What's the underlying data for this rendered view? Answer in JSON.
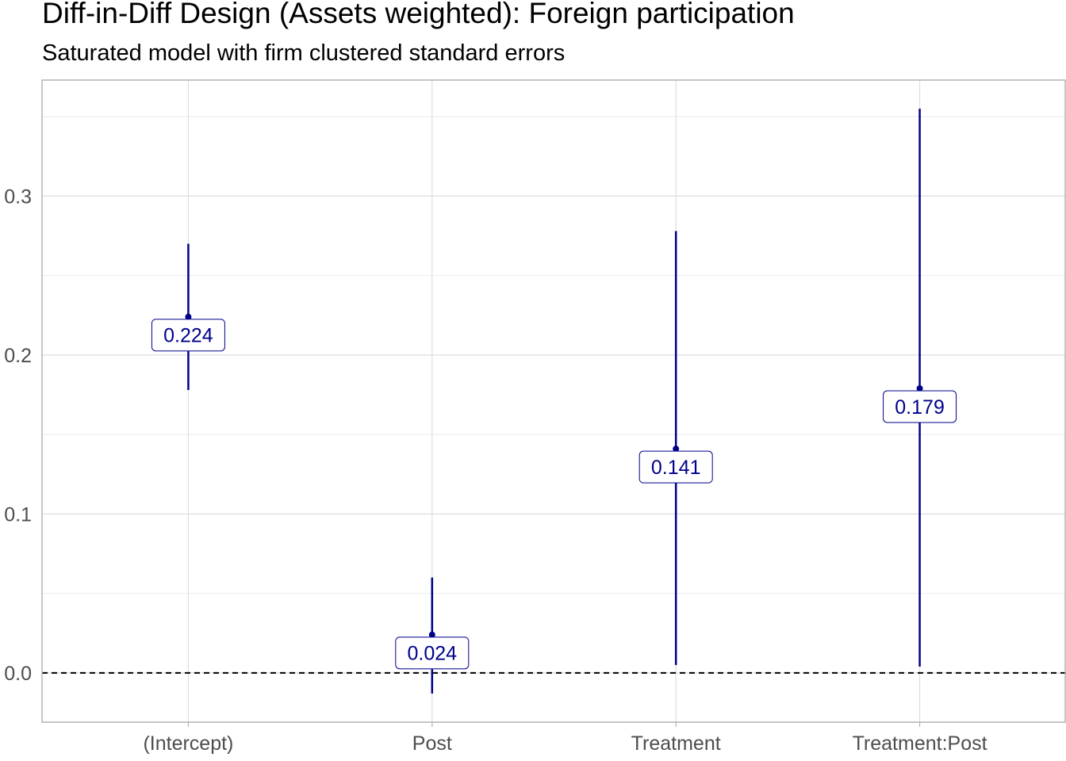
{
  "title": "Diff-in-Diff Design (Assets weighted): Foreign participation",
  "subtitle": "Saturated model with firm clustered standard errors",
  "chart_data": {
    "type": "coefficient-plot",
    "categories": [
      "(Intercept)",
      "Post",
      "Treatment",
      "Treatment:Post"
    ],
    "estimates": [
      0.224,
      0.024,
      0.141,
      0.179
    ],
    "labels": [
      "0.224",
      "0.024",
      "0.141",
      "0.179"
    ],
    "ci_low": [
      0.178,
      -0.013,
      0.005,
      0.004
    ],
    "ci_high": [
      0.27,
      0.06,
      0.278,
      0.355
    ],
    "yticks": [
      0.0,
      0.1,
      0.2,
      0.3
    ],
    "ytick_labels": [
      "0.0",
      "0.1",
      "0.2",
      "0.3"
    ],
    "ylim": [
      -0.031,
      0.373
    ],
    "reference_line": 0.0,
    "grid": true,
    "color": "#00008b"
  }
}
